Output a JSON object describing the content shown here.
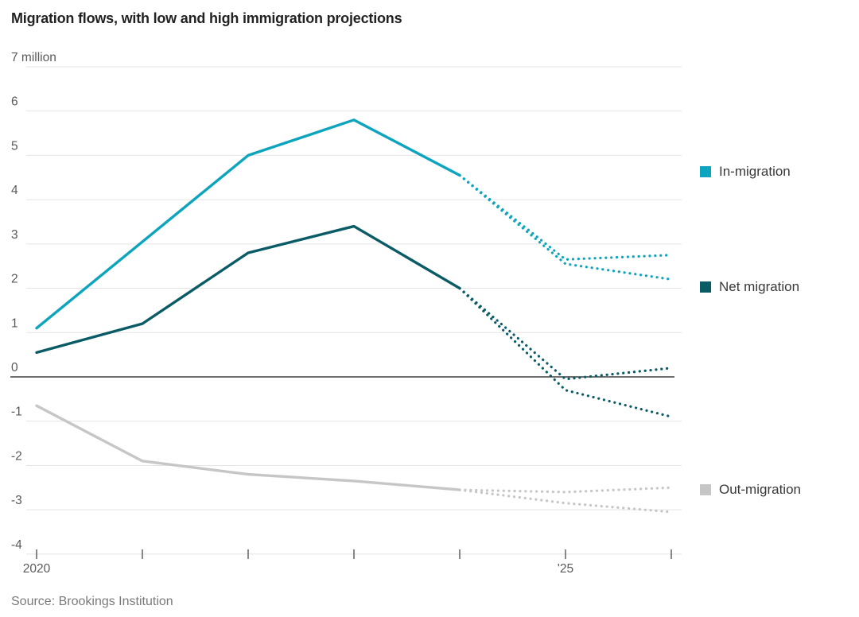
{
  "chart_data": {
    "type": "line",
    "title": "Migration flows, with low and high immigration projections",
    "source": "Source: Brookings Institution",
    "unit_label": "7 million",
    "xlabel": "",
    "ylabel": "million",
    "ylim": [
      -4,
      7
    ],
    "x_range": [
      2020,
      2026
    ],
    "grid": true,
    "legend_position": "right",
    "historical_style": "solid",
    "projection_style": "dotted",
    "y_axis": {
      "tick_values": [
        7,
        6,
        5,
        4,
        3,
        2,
        1,
        0,
        -1,
        -2,
        -3,
        -4
      ],
      "tick_labels": [
        "7 million",
        "6",
        "5",
        "4",
        "3",
        "2",
        "1",
        "0",
        "-1",
        "-2",
        "-3",
        "-4"
      ]
    },
    "x_axis": {
      "tick_years": [
        2020,
        2021,
        2022,
        2023,
        2024,
        2025,
        2026
      ],
      "tick_labels": [
        "2020",
        "",
        "",
        "",
        "",
        "'25",
        ""
      ]
    },
    "series": [
      {
        "name": "In-migration",
        "color": "#0da4bd",
        "historical": [
          [
            2020,
            1.1
          ],
          [
            2021,
            3.05
          ],
          [
            2022,
            5.0
          ],
          [
            2023,
            5.8
          ],
          [
            2024,
            4.55
          ]
        ],
        "projection_high": [
          [
            2024,
            4.55
          ],
          [
            2025,
            2.65
          ],
          [
            2026,
            2.75
          ]
        ],
        "projection_low": [
          [
            2024,
            4.55
          ],
          [
            2025,
            2.55
          ],
          [
            2026,
            2.2
          ]
        ]
      },
      {
        "name": "Net migration",
        "color": "#0a5b66",
        "historical": [
          [
            2020,
            0.55
          ],
          [
            2021,
            1.2
          ],
          [
            2022,
            2.8
          ],
          [
            2023,
            3.4
          ],
          [
            2024,
            2.0
          ]
        ],
        "projection_high": [
          [
            2024,
            2.0
          ],
          [
            2025,
            -0.05
          ],
          [
            2026,
            0.2
          ]
        ],
        "projection_low": [
          [
            2024,
            2.0
          ],
          [
            2025,
            -0.3
          ],
          [
            2026,
            -0.9
          ]
        ]
      },
      {
        "name": "Out-migration",
        "color": "#c6c6c6",
        "historical": [
          [
            2020,
            -0.65
          ],
          [
            2021,
            -1.9
          ],
          [
            2022,
            -2.2
          ],
          [
            2023,
            -2.35
          ],
          [
            2024,
            -2.55
          ]
        ],
        "projection_high": [
          [
            2024,
            -2.55
          ],
          [
            2025,
            -2.6
          ],
          [
            2026,
            -2.5
          ]
        ],
        "projection_low": [
          [
            2024,
            -2.55
          ],
          [
            2025,
            -2.85
          ],
          [
            2026,
            -3.05
          ]
        ]
      }
    ],
    "colors": {
      "grid": "#e4e4e4",
      "zero_line": "#3f3f3f",
      "axis_text": "#595959",
      "tick": "#555555",
      "title_text": "#222222",
      "legend_text": "#383838",
      "source_text": "#7a7a7a"
    }
  }
}
